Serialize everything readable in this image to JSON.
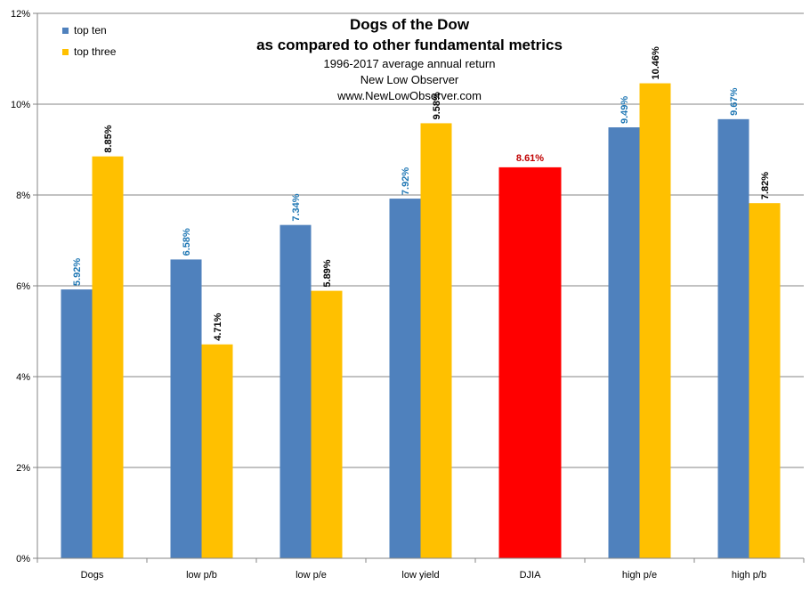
{
  "chart_data": {
    "type": "bar",
    "title_lines": [
      "Dogs of the Dow",
      "as compared to other fundamental metrics"
    ],
    "subtitle_lines": [
      "1996-2017  average annual return",
      "New Low Observer",
      "www.NewLowObserver.com"
    ],
    "categories": [
      "Dogs",
      "low p/b",
      "low p/e",
      "low yield",
      "DJIA",
      "high p/e",
      "high p/b"
    ],
    "series": [
      {
        "name": "top ten",
        "color": "#4F81BD",
        "label_color": "#1F77B4",
        "values": [
          5.92,
          6.58,
          7.34,
          7.92,
          null,
          9.49,
          9.67
        ],
        "labels": [
          "5.92%",
          "6.58%",
          "7.34%",
          "7.92%",
          "",
          "9.49%",
          "9.67%"
        ]
      },
      {
        "name": "top three",
        "color": "#FFC000",
        "label_color": "#000000",
        "values": [
          8.85,
          4.71,
          5.89,
          9.58,
          null,
          10.46,
          7.82
        ],
        "labels": [
          "8.85%",
          "4.71%",
          "5.89%",
          "9.58%",
          "",
          "10.46%",
          "7.82%"
        ]
      }
    ],
    "single_bars": [
      {
        "category": "DJIA",
        "value": 8.61,
        "label": "8.61%",
        "color": "#FF0000",
        "label_color": "#C00000"
      }
    ],
    "y_ticks": [
      "0%",
      "2%",
      "4%",
      "6%",
      "8%",
      "10%",
      "12%"
    ],
    "y_tick_values": [
      0,
      2,
      4,
      6,
      8,
      10,
      12
    ],
    "ylim": [
      0,
      12
    ],
    "grid": true,
    "legend_position": "top-left",
    "xlabel": "",
    "ylabel": ""
  }
}
